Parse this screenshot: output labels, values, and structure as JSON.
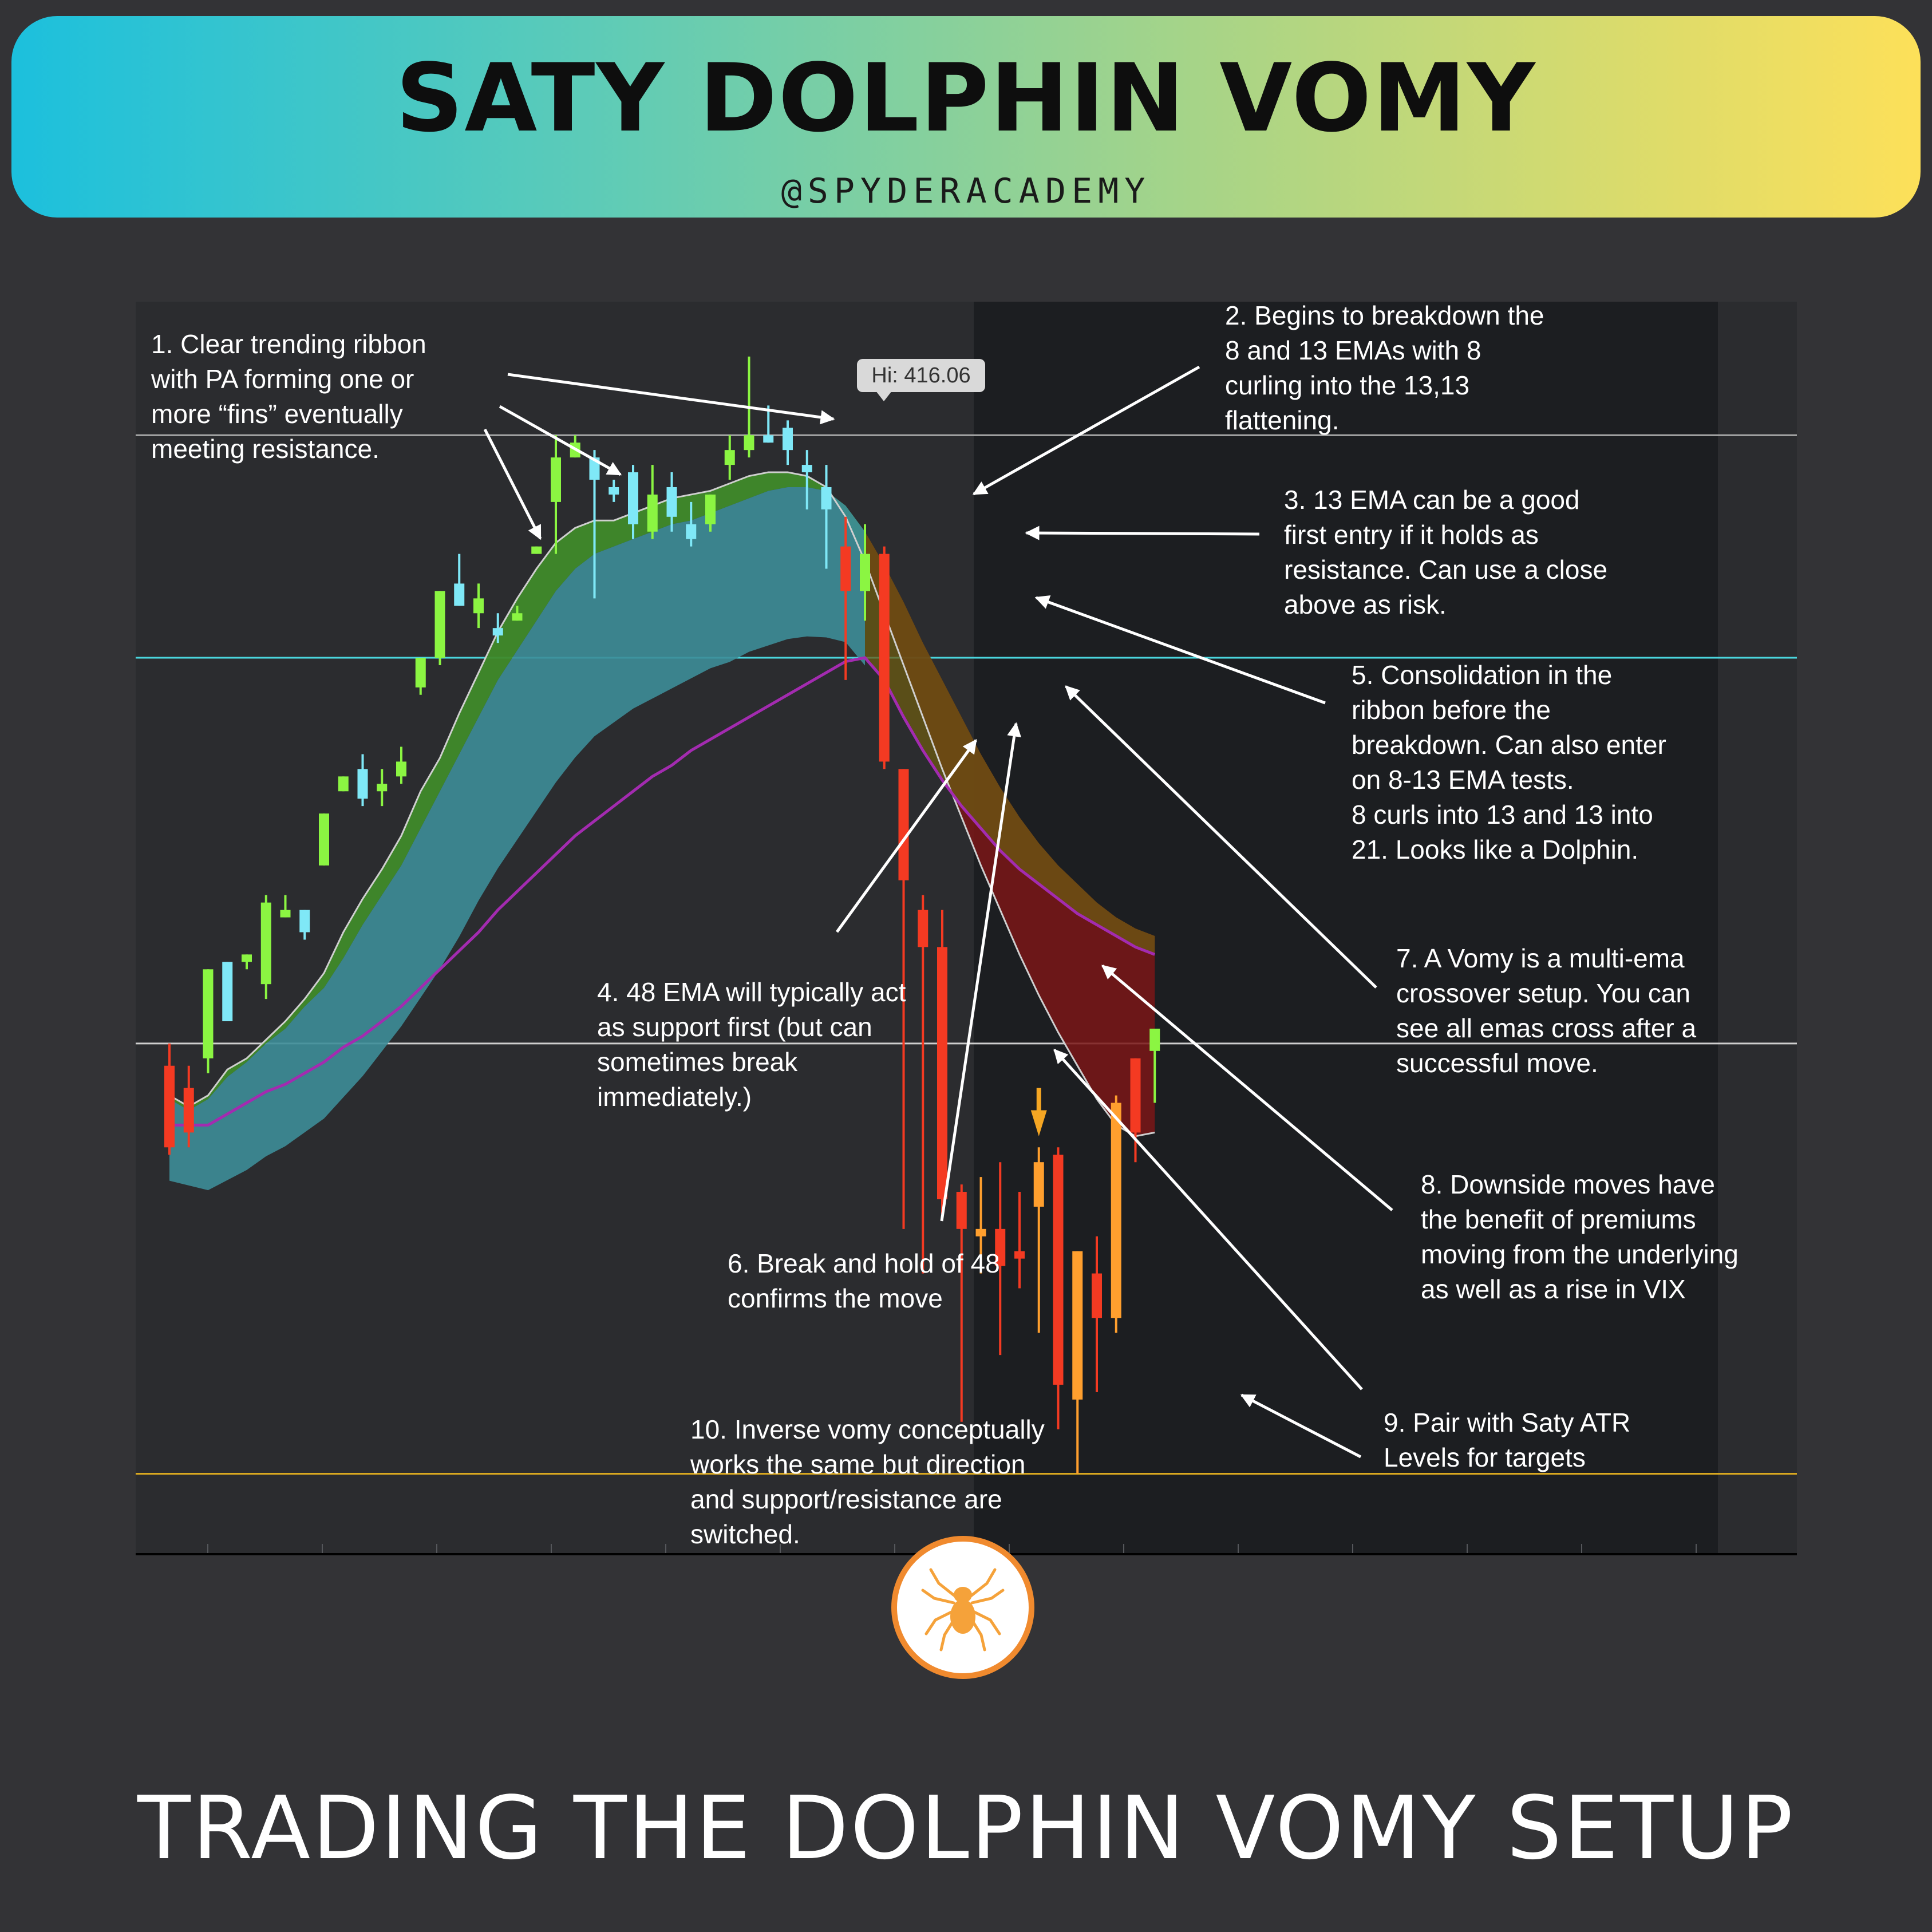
{
  "header": {
    "title": "SATY DOLPHIN VOMY",
    "handle": "@SPYDERACADEMY"
  },
  "footer": {
    "title": "TRADING THE DOLPHIN VOMY SETUP"
  },
  "colors": {
    "background": "#333336",
    "bull_candle": "#8bf542",
    "bull_pullback_candle": "#7fe8f7",
    "bear_candle": "#f43a22",
    "bear_bounce_candle": "#ff9f2e",
    "ribbon_fast_bull": "#3f8a2a",
    "ribbon_slow_bull": "#3d8d98",
    "ribbon_fast_bear": "#7a1616",
    "ribbon_slow_bear": "#6b5a12",
    "ema48": "#a32bb0",
    "atr_level": "#d9a820",
    "level_cyan": "#4ad6de"
  },
  "chart_data": {
    "type": "candlestick",
    "ylim": [
      399.9,
      416.8
    ],
    "high_label": "Hi: 416.06",
    "horizontal_levels": [
      {
        "value": 415.0,
        "color": "#a8a8a8"
      },
      {
        "value": 412.0,
        "color": "#4ad6de"
      },
      {
        "value": 406.8,
        "color": "#cfcfcf"
      },
      {
        "value": 401.0,
        "color": "#d9a820"
      }
    ],
    "candles": [
      {
        "o": 406.5,
        "h": 406.8,
        "c": 405.4,
        "l": 405.3,
        "color": "bear"
      },
      {
        "o": 406.2,
        "h": 406.5,
        "c": 405.6,
        "l": 405.4,
        "color": "bear"
      },
      {
        "o": 406.6,
        "h": 407.8,
        "c": 407.8,
        "l": 406.4,
        "color": "bull"
      },
      {
        "o": 407.1,
        "h": 407.9,
        "c": 407.9,
        "l": 407.1,
        "color": "pullback"
      },
      {
        "o": 407.9,
        "h": 408.0,
        "c": 408.0,
        "l": 407.8,
        "color": "bull"
      },
      {
        "o": 407.6,
        "h": 408.8,
        "c": 408.7,
        "l": 407.4,
        "color": "bull"
      },
      {
        "o": 408.6,
        "h": 408.8,
        "c": 408.5,
        "l": 408.5,
        "color": "bull"
      },
      {
        "o": 408.3,
        "h": 408.6,
        "c": 408.6,
        "l": 408.2,
        "color": "pullback"
      },
      {
        "o": 409.2,
        "h": 409.9,
        "c": 409.9,
        "l": 409.2,
        "color": "bull"
      },
      {
        "o": 410.2,
        "h": 410.4,
        "c": 410.4,
        "l": 410.2,
        "color": "bull"
      },
      {
        "o": 410.5,
        "h": 410.7,
        "c": 410.1,
        "l": 410.0,
        "color": "pullback"
      },
      {
        "o": 410.3,
        "h": 410.5,
        "c": 410.2,
        "l": 410.0,
        "color": "bull"
      },
      {
        "o": 410.4,
        "h": 410.8,
        "c": 410.6,
        "l": 410.3,
        "color": "bull"
      },
      {
        "o": 411.6,
        "h": 412.0,
        "c": 412.0,
        "l": 411.5,
        "color": "bull"
      },
      {
        "o": 412.0,
        "h": 412.9,
        "c": 412.9,
        "l": 411.9,
        "color": "bull"
      },
      {
        "o": 413.0,
        "h": 413.4,
        "c": 412.7,
        "l": 412.7,
        "color": "pullback"
      },
      {
        "o": 412.8,
        "h": 413.0,
        "c": 412.6,
        "l": 412.4,
        "color": "bull"
      },
      {
        "o": 412.4,
        "h": 412.6,
        "c": 412.3,
        "l": 412.2,
        "color": "pullback"
      },
      {
        "o": 412.5,
        "h": 412.7,
        "c": 412.6,
        "l": 412.5,
        "color": "bull"
      },
      {
        "o": 413.4,
        "h": 413.5,
        "c": 413.5,
        "l": 413.4,
        "color": "bull"
      },
      {
        "o": 414.1,
        "h": 415.0,
        "c": 414.7,
        "l": 413.4,
        "color": "bull"
      },
      {
        "o": 414.7,
        "h": 415.0,
        "c": 414.9,
        "l": 414.7,
        "color": "bull"
      },
      {
        "o": 414.7,
        "h": 414.8,
        "c": 414.4,
        "l": 412.8,
        "color": "pullback"
      },
      {
        "o": 414.3,
        "h": 414.4,
        "c": 414.2,
        "l": 414.1,
        "color": "pullback"
      },
      {
        "o": 414.5,
        "h": 414.6,
        "c": 413.8,
        "l": 413.6,
        "color": "pullback"
      },
      {
        "o": 414.2,
        "h": 414.6,
        "c": 413.7,
        "l": 413.6,
        "color": "bull"
      },
      {
        "o": 414.3,
        "h": 414.5,
        "c": 413.9,
        "l": 413.7,
        "color": "pullback"
      },
      {
        "o": 413.8,
        "h": 414.1,
        "c": 413.6,
        "l": 413.5,
        "color": "pullback"
      },
      {
        "o": 413.8,
        "h": 414.2,
        "c": 414.2,
        "l": 413.7,
        "color": "bull"
      },
      {
        "o": 414.6,
        "h": 415.0,
        "c": 414.8,
        "l": 414.4,
        "color": "bull"
      },
      {
        "o": 414.8,
        "h": 416.06,
        "c": 415.0,
        "l": 414.7,
        "color": "bull"
      },
      {
        "o": 415.0,
        "h": 415.4,
        "c": 414.9,
        "l": 414.9,
        "color": "pullback"
      },
      {
        "o": 415.1,
        "h": 415.2,
        "c": 414.8,
        "l": 414.6,
        "color": "pullback"
      },
      {
        "o": 414.6,
        "h": 414.8,
        "c": 414.5,
        "l": 414.0,
        "color": "pullback"
      },
      {
        "o": 414.3,
        "h": 414.6,
        "c": 414.0,
        "l": 413.2,
        "color": "pullback"
      },
      {
        "o": 413.5,
        "h": 413.9,
        "c": 412.9,
        "l": 411.7,
        "color": "bear"
      },
      {
        "o": 413.4,
        "h": 413.8,
        "c": 412.9,
        "l": 412.5,
        "color": "bull"
      },
      {
        "o": 413.4,
        "h": 413.5,
        "c": 410.6,
        "l": 410.5,
        "color": "bear"
      },
      {
        "o": 410.5,
        "h": 410.5,
        "c": 409.0,
        "l": 404.3,
        "color": "bear"
      },
      {
        "o": 408.6,
        "h": 408.8,
        "c": 408.1,
        "l": 403.7,
        "color": "bear"
      },
      {
        "o": 408.1,
        "h": 408.6,
        "c": 404.7,
        "l": 404.5,
        "color": "bear"
      },
      {
        "o": 404.8,
        "h": 404.9,
        "c": 404.3,
        "l": 401.7,
        "color": "bear"
      },
      {
        "o": 404.3,
        "h": 405.0,
        "c": 404.2,
        "l": 403.7,
        "color": "bounce"
      },
      {
        "o": 404.3,
        "h": 405.2,
        "c": 403.8,
        "l": 402.6,
        "color": "bear"
      },
      {
        "o": 404.0,
        "h": 404.8,
        "c": 403.9,
        "l": 403.5,
        "color": "bear"
      },
      {
        "o": 405.2,
        "h": 405.4,
        "c": 404.6,
        "l": 402.9,
        "color": "bounce"
      },
      {
        "o": 405.3,
        "h": 405.4,
        "c": 402.2,
        "l": 401.6,
        "color": "bear"
      },
      {
        "o": 404.0,
        "h": 404.0,
        "c": 402.0,
        "l": 401.0,
        "color": "bounce"
      },
      {
        "o": 403.7,
        "h": 404.2,
        "c": 403.1,
        "l": 402.1,
        "color": "bear"
      },
      {
        "o": 403.1,
        "h": 406.1,
        "c": 406.0,
        "l": 402.9,
        "color": "bounce"
      },
      {
        "o": 405.6,
        "h": 406.6,
        "c": 406.6,
        "l": 405.2,
        "color": "bear"
      },
      {
        "o": 406.7,
        "h": 407.0,
        "c": 407.0,
        "l": 406.0,
        "color": "bull"
      }
    ],
    "ema8": [
      406.1,
      405.95,
      406.1,
      406.45,
      406.6,
      406.85,
      407.1,
      407.4,
      407.75,
      408.3,
      408.75,
      409.15,
      409.6,
      410.2,
      410.65,
      411.25,
      411.8,
      412.35,
      412.8,
      413.2,
      413.55,
      413.75,
      413.85,
      413.85,
      413.95,
      414.05,
      414.15,
      414.2,
      414.25,
      414.35,
      414.45,
      414.5,
      414.5,
      414.45,
      414.3,
      413.9,
      413.3,
      412.6,
      411.9,
      411.2,
      410.5,
      409.85,
      409.2,
      408.6,
      408.0,
      407.45,
      406.95,
      406.5,
      406.05,
      405.7,
      405.55,
      405.6
    ],
    "ema13": [
      406.05,
      405.9,
      406.05,
      406.35,
      406.55,
      406.8,
      407.0,
      407.3,
      407.55,
      407.95,
      408.4,
      408.8,
      409.2,
      409.7,
      410.2,
      410.7,
      411.2,
      411.7,
      412.1,
      412.5,
      412.9,
      413.2,
      413.4,
      413.5,
      413.6,
      413.7,
      413.8,
      413.85,
      413.95,
      414.05,
      414.15,
      414.25,
      414.3,
      414.3,
      414.25,
      414.05,
      413.7,
      413.25,
      412.75,
      412.2,
      411.7,
      411.2,
      410.7,
      410.25,
      409.85,
      409.5,
      409.2,
      408.95,
      408.7,
      408.5,
      408.35,
      408.25
    ],
    "ema21": [
      406.0,
      405.95,
      405.9,
      406.05,
      406.2,
      406.4,
      406.55,
      406.75,
      406.95,
      407.25,
      407.55,
      407.9,
      408.25,
      408.65,
      409.05,
      409.5,
      410.0,
      410.45,
      410.85,
      411.25,
      411.65,
      412.0,
      412.3,
      412.5,
      412.7,
      412.85,
      413.0,
      413.15,
      413.3,
      413.4,
      413.55,
      413.65,
      413.75,
      413.8,
      413.8,
      413.75,
      413.45,
      413.0,
      412.45,
      411.9,
      411.35,
      410.85,
      410.4,
      410.0,
      409.6,
      409.3,
      409.0,
      408.75,
      408.55,
      408.35,
      408.2,
      408.1
    ],
    "ema48": [
      405.7,
      405.7,
      405.7,
      405.85,
      406.0,
      406.15,
      406.25,
      406.4,
      406.55,
      406.75,
      406.9,
      407.1,
      407.3,
      407.55,
      407.8,
      408.05,
      408.3,
      408.6,
      408.85,
      409.1,
      409.35,
      409.6,
      409.8,
      410.0,
      410.2,
      410.4,
      410.55,
      410.75,
      410.9,
      411.05,
      411.2,
      411.35,
      411.5,
      411.65,
      411.8,
      411.95,
      412.0,
      411.7,
      411.2,
      410.75,
      410.35,
      410.0,
      409.7,
      409.4,
      409.15,
      408.95,
      408.75,
      408.55,
      408.4,
      408.25,
      408.1,
      408.0
    ],
    "annotations": [
      "1. Clear trending ribbon\nwith PA forming one or\nmore “fins” eventually\nmeeting resistance.",
      "2. Begins to breakdown the\n8 and 13 EMAs with 8\ncurling into the 13,13\nflattening.",
      "3. 13 EMA can be a good\nfirst entry if it holds as\nresistance. Can use a close\nabove as risk.",
      "5. Consolidation in the\nribbon before the\nbreakdown. Can also enter\non 8-13 EMA tests.\n8 curls into 13 and 13 into\n21. Looks like a Dolphin.",
      "7. A Vomy is a multi-ema\ncrossover setup. You can\nsee all emas cross after a\nsuccessful move.",
      "4. 48 EMA will typically act\nas support first (but can\nsometimes break\nimmediately.)",
      "8. Downside moves have\nthe benefit of premiums\nmoving from the underlying\nas well as a rise in VIX",
      "6. Break and hold of 48\nconfirms the move",
      "9. Pair with Saty ATR\nLevels for targets",
      "10. Inverse vomy conceptually\nworks the same but direction\nand support/resistance are\nswitched."
    ]
  }
}
